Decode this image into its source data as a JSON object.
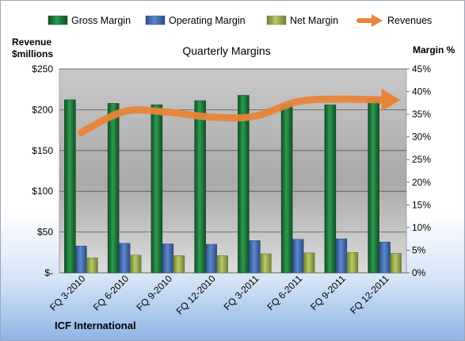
{
  "chart_data": {
    "type": "bar",
    "title": "Quarterly Margins",
    "company": "ICF International",
    "left_axis": {
      "label_line1": "Revenue",
      "label_line2": "$millions",
      "ylim": [
        0,
        250
      ],
      "ticks": [
        {
          "value": 0,
          "label": "$-"
        },
        {
          "value": 50,
          "label": "$50"
        },
        {
          "value": 100,
          "label": "$100"
        },
        {
          "value": 150,
          "label": "$150"
        },
        {
          "value": 200,
          "label": "$200"
        },
        {
          "value": 250,
          "label": "$250"
        }
      ]
    },
    "right_axis": {
      "label": "Margin %",
      "ylim": [
        0,
        45
      ],
      "ticks": [
        {
          "value": 0,
          "label": "0%"
        },
        {
          "value": 5,
          "label": "5%"
        },
        {
          "value": 10,
          "label": "10%"
        },
        {
          "value": 15,
          "label": "15%"
        },
        {
          "value": 20,
          "label": "20%"
        },
        {
          "value": 25,
          "label": "25%"
        },
        {
          "value": 30,
          "label": "30%"
        },
        {
          "value": 35,
          "label": "35%"
        },
        {
          "value": 40,
          "label": "40%"
        },
        {
          "value": 45,
          "label": "45%"
        }
      ]
    },
    "grid": true,
    "legend_placement": "top",
    "categories": [
      "FQ 3-2010",
      "FQ 6-2010",
      "FQ 9-2010",
      "FQ 12-2010",
      "FQ 3-2011",
      "FQ 6-2011",
      "FQ 9-2011",
      "FQ 12-2011"
    ],
    "series": [
      {
        "name": "Gross Margin",
        "type": "bar",
        "axis": "right",
        "color": "#1f7a3c",
        "values": [
          38.2,
          37.4,
          37.1,
          38.0,
          39.2,
          37.3,
          37.1,
          38.5
        ]
      },
      {
        "name": "Operating Margin",
        "type": "bar",
        "axis": "right",
        "color": "#3f6ab0",
        "values": [
          5.9,
          6.5,
          6.4,
          6.3,
          7.1,
          7.4,
          7.5,
          6.8
        ]
      },
      {
        "name": "Net Margin",
        "type": "bar",
        "axis": "right",
        "color": "#9ab04a",
        "values": [
          3.3,
          3.9,
          3.8,
          3.8,
          4.2,
          4.4,
          4.5,
          4.3
        ]
      },
      {
        "name": "Revenues",
        "type": "line",
        "axis": "left",
        "color": "#e8843a",
        "values": [
          172,
          198,
          197,
          191,
          192,
          210,
          213,
          212
        ]
      }
    ]
  }
}
